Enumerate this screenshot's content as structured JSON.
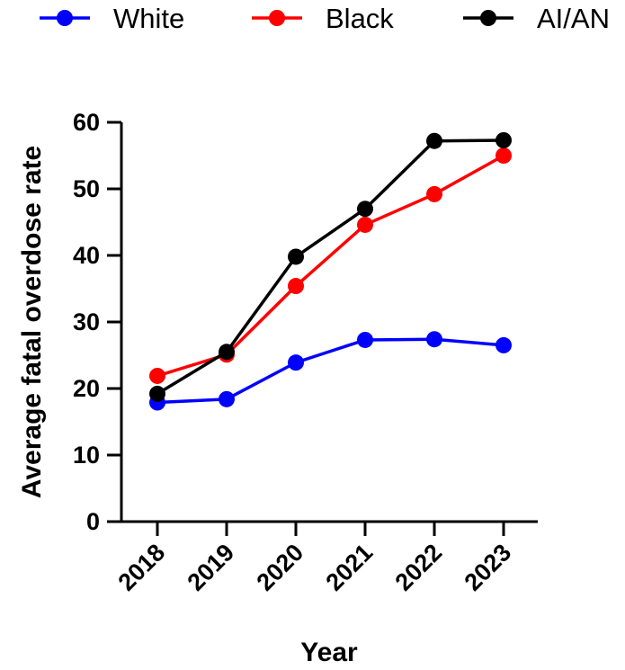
{
  "chart_data": {
    "type": "line",
    "title": "",
    "xlabel": "Year",
    "ylabel": "Average fatal overdose rate",
    "categories": [
      "2018",
      "2019",
      "2020",
      "2021",
      "2022",
      "2023"
    ],
    "ylim": [
      0,
      60
    ],
    "yticks": [
      "0",
      "10",
      "20",
      "30",
      "40",
      "50",
      "60"
    ],
    "grid": false,
    "legend_position": "top",
    "series": [
      {
        "name": "White",
        "color": "#0000ff",
        "values": [
          17.9,
          18.4,
          23.9,
          27.3,
          27.4,
          26.5
        ]
      },
      {
        "name": "Black",
        "color": "#ff0000",
        "values": [
          21.9,
          25.1,
          35.4,
          44.6,
          49.2,
          55.0
        ]
      },
      {
        "name": "AI/AN",
        "color": "#000000",
        "values": [
          19.2,
          25.5,
          39.8,
          47.0,
          57.2,
          57.3
        ]
      }
    ]
  }
}
